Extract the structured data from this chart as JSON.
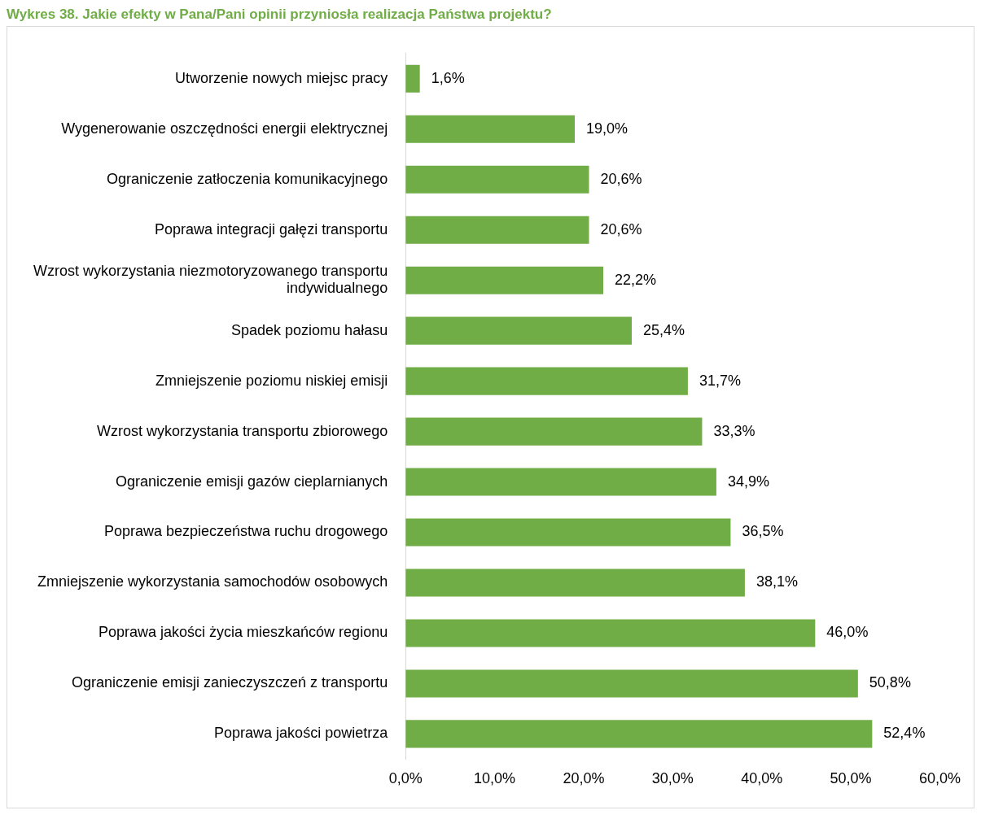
{
  "chart_data": {
    "type": "bar",
    "orientation": "horizontal",
    "title": "Wykres 38. Jakie efekty w Pana/Pani opinii przyniosła realizacja Państwa projektu?",
    "categories": [
      "Utworzenie nowych miejsc pracy",
      "Wygenerowanie oszczędności energii elektrycznej",
      "Ograniczenie zatłoczenia komunikacyjnego",
      "Poprawa integracji gałęzi transportu",
      "Wzrost wykorzystania niezmotoryzowanego transportu indywidualnego",
      "Spadek poziomu hałasu",
      "Zmniejszenie poziomu niskiej emisji",
      "Wzrost wykorzystania transportu zbiorowego",
      "Ograniczenie emisji gazów cieplarnianych",
      "Poprawa bezpieczeństwa ruchu drogowego",
      "Zmniejszenie wykorzystania samochodów osobowych",
      "Poprawa jakości życia mieszkańców regionu",
      "Ograniczenie emisji zanieczyszczeń z transportu",
      "Poprawa jakości powietrza"
    ],
    "values": [
      1.6,
      19.0,
      20.6,
      20.6,
      22.2,
      25.4,
      31.7,
      33.3,
      34.9,
      36.5,
      38.1,
      46.0,
      50.8,
      52.4
    ],
    "value_labels": [
      "1,6%",
      "19,0%",
      "20,6%",
      "20,6%",
      "22,2%",
      "25,4%",
      "31,7%",
      "33,3%",
      "34,9%",
      "36,5%",
      "38,1%",
      "46,0%",
      "50,8%",
      "52,4%"
    ],
    "color": "#70ad47",
    "xlim": [
      0,
      60
    ],
    "xticks": [
      {
        "value": 0,
        "label": "0,0%"
      },
      {
        "value": 10,
        "label": "10,0%"
      },
      {
        "value": 20,
        "label": "20,0%"
      },
      {
        "value": 30,
        "label": "30,0%"
      },
      {
        "value": 40,
        "label": "40,0%"
      },
      {
        "value": 50,
        "label": "50,0%"
      },
      {
        "value": 60,
        "label": "60,0%"
      }
    ],
    "grid": false,
    "legend": false
  }
}
